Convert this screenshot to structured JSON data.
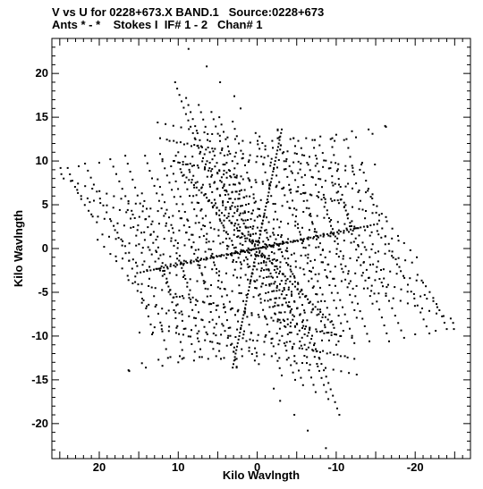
{
  "header": {
    "line1": "V vs U for 0228+673.X BAND.1   Source:0228+673",
    "line2": "Ants * - *    Stokes I  IF# 1 - 2   Chan# 1"
  },
  "chart_data": {
    "type": "scatter",
    "title": "V vs U for 0228+673.X BAND.1   Source:0228+673",
    "subtitle": "Ants * - *    Stokes I  IF# 1 - 2   Chan# 1",
    "xlabel": "Kilo Wavlngth",
    "ylabel": "Kilo Wavlngth",
    "xlim": [
      26,
      -27
    ],
    "ylim": [
      -24,
      24
    ],
    "xticks": [
      20,
      10,
      0,
      -10,
      -20
    ],
    "yticks": [
      20,
      15,
      10,
      5,
      0,
      -5,
      -10,
      -15,
      -20
    ],
    "xtick_labels": [
      "20",
      "10",
      "0",
      "-10",
      "-20"
    ],
    "ytick_labels": [
      "20",
      "15",
      "10",
      "5",
      "0",
      "-5",
      "-10",
      "-15",
      "-20"
    ],
    "grid": false,
    "legend": "none",
    "symmetric": true,
    "marker_color": "#000000",
    "baseline_count": 30,
    "series": [
      {
        "values_uv": [
          [
            24.9,
            9.2
          ],
          [
            24.8,
            8.5
          ],
          [
            22.6,
            9.4
          ],
          [
            22.8,
            6.7
          ],
          [
            21.2,
            5.3
          ],
          [
            20.0,
            9.8
          ],
          [
            16.2,
            -14.0
          ],
          [
            14.1,
            -13.6
          ],
          [
            12.0,
            -13.4
          ],
          [
            10.0,
            -13.0
          ],
          [
            8.0,
            -12.8
          ],
          [
            6.2,
            -12.6
          ],
          [
            4.2,
            -12.5
          ],
          [
            1.9,
            -12.3
          ],
          [
            12.0,
            10.2
          ],
          [
            10.5,
            10.0
          ],
          [
            9.4,
            9.6
          ],
          [
            8.0,
            9.5
          ],
          [
            6.0,
            9.8
          ],
          [
            4.3,
            9.6
          ],
          [
            2.5,
            9.7
          ],
          [
            1.1,
            9.9
          ],
          [
            8.7,
            22.8
          ],
          [
            6.4,
            20.8
          ],
          [
            4.7,
            19.0
          ],
          [
            2.9,
            17.4
          ],
          [
            2.1,
            16.0
          ],
          [
            -2.6,
            13.5
          ],
          [
            -4.6,
            12.6
          ],
          [
            -7.3,
            12.4
          ],
          [
            -9.5,
            12.6
          ],
          [
            -11.0,
            12.4
          ],
          [
            -12.5,
            12.7
          ],
          [
            -14.6,
            13.1
          ],
          [
            -16.3,
            13.9
          ],
          [
            -9.8,
            12.3
          ],
          [
            -14.9,
            9.6
          ],
          [
            -13.3,
            9.8
          ],
          [
            -11.5,
            7.4
          ],
          [
            -9.8,
            5.5
          ],
          [
            -6.3,
            -12.4
          ],
          [
            -8.2,
            -10.5
          ],
          [
            -10.0,
            -11.0
          ]
        ],
        "tracks": [
          {
            "from": [
              24.0,
              9.2
            ],
            "to": [
              20.3,
              3.0
            ],
            "n": 10
          },
          {
            "from": [
              21.8,
              9.7
            ],
            "to": [
              15.2,
              -2.0
            ],
            "n": 16
          },
          {
            "from": [
              18.6,
              10.2
            ],
            "to": [
              9.6,
              -7.2
            ],
            "n": 22
          },
          {
            "from": [
              16.7,
              10.6
            ],
            "to": [
              7.9,
              -11.8
            ],
            "n": 26
          },
          {
            "from": [
              14.2,
              10.6
            ],
            "to": [
              5.2,
              -12.3
            ],
            "n": 28
          },
          {
            "from": [
              12.3,
              10.8
            ],
            "to": [
              2.6,
              -12.6
            ],
            "n": 30
          },
          {
            "from": [
              10.3,
              10.6
            ],
            "to": [
              0.3,
              -12.8
            ],
            "n": 32
          },
          {
            "from": [
              10.4,
              19.0
            ],
            "to": [
              3.6,
              4.0
            ],
            "n": 22
          },
          {
            "from": [
              9.0,
              17.2
            ],
            "to": [
              1.4,
              -1.0
            ],
            "n": 24
          },
          {
            "from": [
              7.4,
              16.4
            ],
            "to": [
              -0.7,
              -4.0
            ],
            "n": 26
          },
          {
            "from": [
              5.8,
              15.6
            ],
            "to": [
              -2.6,
              -6.5
            ],
            "n": 28
          },
          {
            "from": [
              4.8,
              15.0
            ],
            "to": [
              -4.2,
              -8.9
            ],
            "n": 30
          },
          {
            "from": [
              3.1,
              14.5
            ],
            "to": [
              -6.0,
              -11.0
            ],
            "n": 32
          },
          {
            "from": [
              0.2,
              13.2
            ],
            "to": [
              -7.9,
              -12.6
            ],
            "n": 30
          },
          {
            "from": [
              -2.6,
              13.6
            ],
            "to": [
              -9.1,
              -10.5
            ],
            "n": 28
          },
          {
            "from": [
              -4.6,
              12.6
            ],
            "to": [
              -10.9,
              -9.4
            ],
            "n": 26
          },
          {
            "from": [
              -7.0,
              12.4
            ],
            "to": [
              -12.6,
              -7.9
            ],
            "n": 24
          },
          {
            "from": [
              -9.3,
              12.5
            ],
            "to": [
              -14.6,
              -6.3
            ],
            "n": 22
          },
          {
            "from": [
              -11.3,
              12.5
            ],
            "to": [
              -16.4,
              -4.4
            ],
            "n": 18
          },
          {
            "from": [
              -13.2,
              9.6
            ],
            "to": [
              -18.0,
              -2.1
            ],
            "n": 14
          },
          {
            "from": [
              -14.0,
              6.6
            ],
            "to": [
              -20.2,
              -1.0
            ],
            "n": 10
          },
          {
            "from": [
              24.5,
              8.0
            ],
            "to": [
              -1.0,
              0.5
            ],
            "n": 28
          },
          {
            "from": [
              22.3,
              6.0
            ],
            "to": [
              -2.4,
              -1.4
            ],
            "n": 30
          },
          {
            "from": [
              21.0,
              3.9
            ],
            "to": [
              -4.2,
              -3.2
            ],
            "n": 30
          },
          {
            "from": [
              19.6,
              1.6
            ],
            "to": [
              -6.2,
              -5.4
            ],
            "n": 30
          },
          {
            "from": [
              17.9,
              -0.9
            ],
            "to": [
              -7.8,
              -7.5
            ],
            "n": 30
          },
          {
            "from": [
              16.3,
              -3.6
            ],
            "to": [
              -9.4,
              -9.9
            ],
            "n": 30
          },
          {
            "from": [
              14.6,
              -6.2
            ],
            "to": [
              -11.1,
              -12.3
            ],
            "n": 30
          },
          {
            "from": [
              13.0,
              -9.0
            ],
            "to": [
              -12.6,
              -14.4
            ],
            "n": 28
          },
          {
            "from": [
              10.6,
              10.0
            ],
            "to": [
              -10.2,
              5.5
            ],
            "n": 26
          },
          {
            "from": [
              12.3,
              12.6
            ],
            "to": [
              -12.1,
              8.8
            ],
            "n": 28
          },
          {
            "from": [
              8.1,
              6.0
            ],
            "to": [
              -4.1,
              -9.6
            ],
            "n": 22
          },
          {
            "from": [
              7.0,
              7.0
            ],
            "to": [
              -2.8,
              -7.3
            ],
            "n": 20
          },
          {
            "from": [
              -2.0,
              1.8
            ],
            "to": [
              -8.6,
              -9.0
            ],
            "n": 16
          },
          {
            "from": [
              3.3,
              -0.7
            ],
            "to": [
              -12.3,
              2.5
            ],
            "n": 18
          }
        ],
        "rays": [
          {
            "to": [
              -3.1,
              13.6
            ],
            "n": 34
          },
          {
            "to": [
              -15.2,
              2.8
            ],
            "n": 36
          },
          {
            "to": [
              -9.6,
              -8.7
            ],
            "n": 30
          },
          {
            "to": [
              -4.5,
              -7.6
            ],
            "n": 16
          },
          {
            "to": [
              -11.6,
              1.9
            ],
            "n": 18
          }
        ]
      }
    ]
  }
}
